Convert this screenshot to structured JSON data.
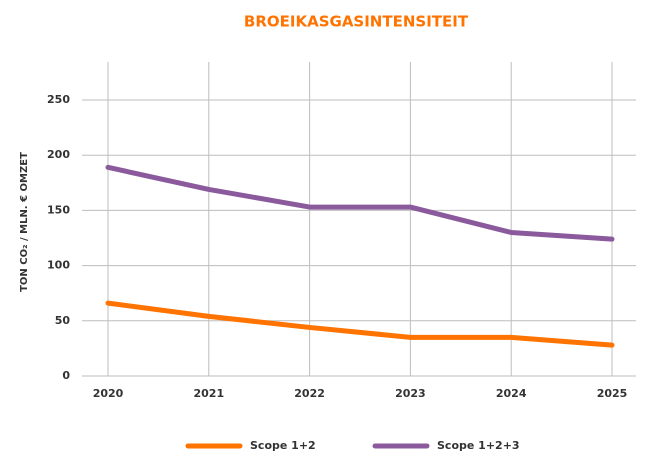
{
  "chart_data": {
    "type": "line",
    "title": "BROEIKASGASINTENSITEIT",
    "y_label": "TON CO₂ / MLN. € OMZET",
    "categories": [
      "2020",
      "2021",
      "2022",
      "2023",
      "2024",
      "2025"
    ],
    "series": [
      {
        "name": "Scope 1+2",
        "color": "#ff7300",
        "values": [
          66,
          54,
          44,
          35,
          35,
          28
        ]
      },
      {
        "name": "Scope 1+2+3",
        "color": "#8a5a9c",
        "values": [
          189,
          169,
          153,
          153,
          130,
          124
        ]
      }
    ],
    "ylim": [
      0,
      250
    ],
    "yticks": [
      0,
      50,
      100,
      150,
      200,
      250
    ],
    "grid": true
  }
}
